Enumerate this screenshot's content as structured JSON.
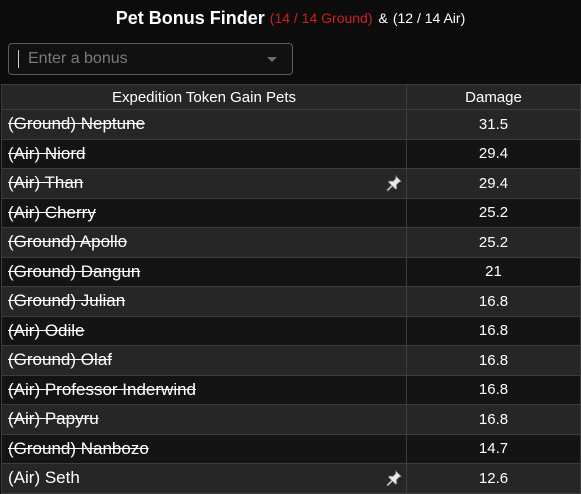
{
  "header": {
    "title": "Pet Bonus Finder",
    "ground_count": "(14 / 14 Ground)",
    "amp": "&",
    "air_count": "(12 / 14 Air)"
  },
  "search": {
    "placeholder": "Enter a bonus",
    "value": ""
  },
  "table": {
    "columns": [
      "Expedition Token Gain Pets",
      "Damage"
    ],
    "rows": [
      {
        "name": "(Ground) Neptune",
        "damage": "31.5",
        "struck": true,
        "pin": false
      },
      {
        "name": "(Air) Niord",
        "damage": "29.4",
        "struck": true,
        "pin": false
      },
      {
        "name": "(Air) Than",
        "damage": "29.4",
        "struck": true,
        "pin": true
      },
      {
        "name": "(Air) Cherry",
        "damage": "25.2",
        "struck": true,
        "pin": false
      },
      {
        "name": "(Ground) Apollo",
        "damage": "25.2",
        "struck": true,
        "pin": false
      },
      {
        "name": "(Ground) Dangun",
        "damage": "21",
        "struck": true,
        "pin": false
      },
      {
        "name": "(Ground) Julian",
        "damage": "16.8",
        "struck": true,
        "pin": false
      },
      {
        "name": "(Air) Odile",
        "damage": "16.8",
        "struck": true,
        "pin": false
      },
      {
        "name": "(Ground) Olaf",
        "damage": "16.8",
        "struck": true,
        "pin": false
      },
      {
        "name": "(Air) Professor Inderwind",
        "damage": "16.8",
        "struck": true,
        "pin": false
      },
      {
        "name": "(Air) Papyru",
        "damage": "16.8",
        "struck": true,
        "pin": false
      },
      {
        "name": "(Ground) Nanbozo",
        "damage": "14.7",
        "struck": true,
        "pin": false
      },
      {
        "name": "(Air) Seth",
        "damage": "12.6",
        "struck": false,
        "pin": true
      }
    ]
  },
  "colors": {
    "ground_accent": "#d01f1f",
    "row_odd": "#262626",
    "row_even": "#141414"
  },
  "icons": {
    "pin": "pin-icon",
    "dropdown": "chevron-down-icon"
  }
}
